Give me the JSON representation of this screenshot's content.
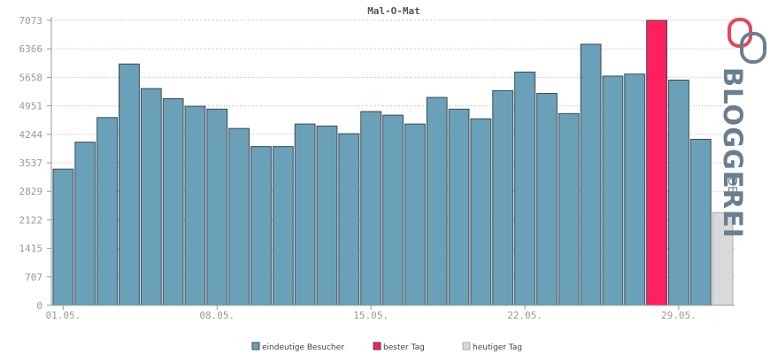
{
  "colors": {
    "regular": "#6aa0b8",
    "best": "#ff2060",
    "today": "#d9d9d9",
    "axis": "#999999",
    "grid": "#bbbbbb",
    "logo": "#6a7e8f",
    "logo_accent": "#e8445a"
  },
  "logo": {
    "text": "BLOGGEREI",
    "suffix": ".DE"
  },
  "chart_data": {
    "type": "bar",
    "title": "Mal-O-Mat",
    "xlabel": "",
    "ylabel": "",
    "yticks": [
      0,
      707,
      1415,
      2122,
      2829,
      3537,
      4244,
      4951,
      5658,
      6366,
      7073
    ],
    "ytick_labels": [
      "0",
      "707",
      "1415",
      "2122",
      "2829",
      "3537",
      "4244",
      "4951",
      "5658",
      "6366",
      "7073"
    ],
    "ylim": [
      0,
      7073
    ],
    "grid": true,
    "legend_position": "bottom",
    "xtick_labels": [
      {
        "index": 0,
        "label": "01.05."
      },
      {
        "index": 7,
        "label": "08.05."
      },
      {
        "index": 14,
        "label": "15.05."
      },
      {
        "index": 21,
        "label": "22.05."
      },
      {
        "index": 28,
        "label": "29.05."
      }
    ],
    "values": [
      3380,
      4050,
      4660,
      5990,
      5380,
      5130,
      4940,
      4870,
      4390,
      3940,
      3940,
      4500,
      4450,
      4260,
      4810,
      4720,
      4500,
      5160,
      4870,
      4630,
      5330,
      5790,
      5260,
      4760,
      6480,
      5690,
      5740,
      7073,
      5590,
      4120,
      2300
    ],
    "categories_kind": [
      "regular",
      "regular",
      "regular",
      "regular",
      "regular",
      "regular",
      "regular",
      "regular",
      "regular",
      "regular",
      "regular",
      "regular",
      "regular",
      "regular",
      "regular",
      "regular",
      "regular",
      "regular",
      "regular",
      "regular",
      "regular",
      "regular",
      "regular",
      "regular",
      "regular",
      "regular",
      "regular",
      "best",
      "regular",
      "regular",
      "today"
    ],
    "legend": [
      {
        "label": "eindeutige Besucher",
        "kind": "regular"
      },
      {
        "label": "bester Tag",
        "kind": "best"
      },
      {
        "label": "heutiger Tag",
        "kind": "today"
      }
    ]
  }
}
